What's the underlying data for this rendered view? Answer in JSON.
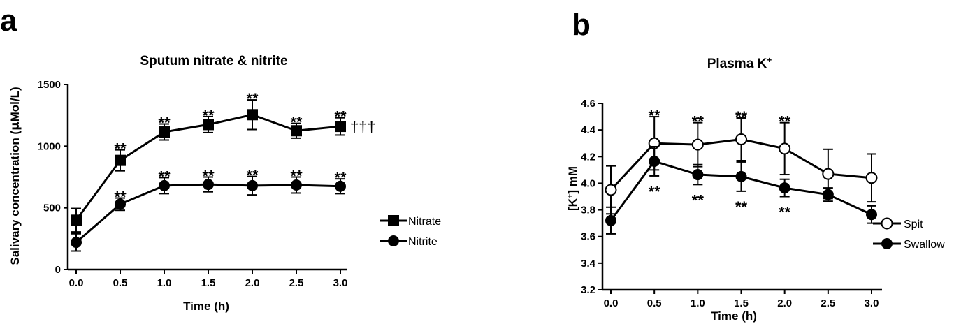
{
  "chart_data": [
    {
      "panel": "a",
      "type": "line",
      "title": "Sputum nitrate & nitrite",
      "xlabel": "Time (h)",
      "ylabel": "Salivary concentration (µMol/L)",
      "xlim": [
        -0.1,
        3.15
      ],
      "ylim": [
        0,
        1500
      ],
      "xticks": [
        "0.0",
        "0.5",
        "1.0",
        "1.5",
        "2.0",
        "2.5",
        "3.0"
      ],
      "yticks": [
        "0",
        "500",
        "1000",
        "1500"
      ],
      "x": [
        0.0,
        0.5,
        1.0,
        1.5,
        2.0,
        2.5,
        3.0
      ],
      "legend_position": "right",
      "series": [
        {
          "name": "Nitrate",
          "marker": "square-filled",
          "values": [
            400,
            885,
            1115,
            1175,
            1255,
            1125,
            1160
          ],
          "errors": [
            95,
            85,
            65,
            65,
            120,
            60,
            70
          ],
          "annotations": [
            "",
            "**",
            "**",
            "**",
            "**",
            "**",
            "**"
          ],
          "trailing_annotation": "†††"
        },
        {
          "name": "Nitrite",
          "marker": "circle-filled",
          "values": [
            220,
            530,
            680,
            690,
            680,
            685,
            675
          ],
          "errors": [
            70,
            50,
            65,
            60,
            75,
            65,
            60
          ],
          "annotations": [
            "",
            "**",
            "**",
            "**",
            "**",
            "**",
            "**"
          ]
        }
      ]
    },
    {
      "panel": "b",
      "type": "line",
      "title": "Plasma K+",
      "xlabel": "Time (h)",
      "ylabel": "[K+] mM",
      "xlim": [
        -0.1,
        3.15
      ],
      "ylim": [
        3.2,
        4.6
      ],
      "xticks": [
        "0.0",
        "0.5",
        "1.0",
        "1.5",
        "2.0",
        "2.5",
        "3.0"
      ],
      "yticks": [
        "3.2",
        "3.4",
        "3.6",
        "3.8",
        "4.0",
        "4.2",
        "4.4",
        "4.6"
      ],
      "x": [
        0.0,
        0.5,
        1.0,
        1.5,
        2.0,
        2.5,
        3.0
      ],
      "legend_position": "bottom-right",
      "series": [
        {
          "name": "Spit",
          "marker": "circle-open",
          "values": [
            3.95,
            4.3,
            4.29,
            4.33,
            4.26,
            4.07,
            4.04
          ],
          "errors": [
            0.18,
            0.2,
            0.165,
            0.16,
            0.195,
            0.185,
            0.18
          ],
          "annotations": [
            "",
            "**",
            "**",
            "**",
            "**",
            "",
            ""
          ]
        },
        {
          "name": "Swallow",
          "marker": "circle-filled",
          "values": [
            3.72,
            4.165,
            4.065,
            4.05,
            3.965,
            3.915,
            3.765
          ],
          "errors": [
            0.1,
            0.11,
            0.075,
            0.11,
            0.065,
            0.05,
            0.065
          ],
          "annotations": [
            "",
            "**",
            "**",
            "**",
            "**",
            "",
            ""
          ]
        }
      ]
    }
  ]
}
